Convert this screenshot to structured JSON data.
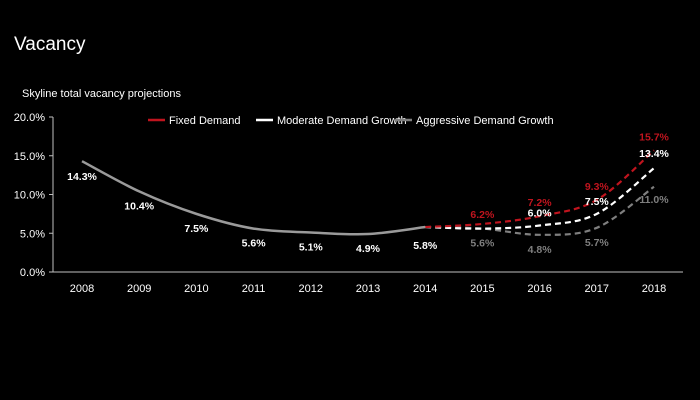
{
  "page": {
    "title": "Vacancy",
    "subtitle": "Skyline total vacancy projections"
  },
  "chart_data": {
    "type": "line",
    "title": "Skyline total vacancy projections",
    "xlabel": "",
    "ylabel": "",
    "ylim": [
      0,
      20
    ],
    "y_ticks": [
      "0.0%",
      "5.0%",
      "10.0%",
      "15.0%",
      "20.0%"
    ],
    "categories": [
      "2008",
      "2009",
      "2010",
      "2011",
      "2012",
      "2013",
      "2014",
      "2015",
      "2016",
      "2017",
      "2018"
    ],
    "legend_position": "top",
    "grid": false,
    "historical": {
      "values": [
        14.3,
        10.4,
        7.5,
        5.6,
        5.1,
        4.9,
        5.8
      ],
      "labels": [
        "14.3%",
        "10.4%",
        "7.5%",
        "5.6%",
        "5.1%",
        "4.9%",
        "5.8%"
      ],
      "color": "#9a9a9a"
    },
    "series": [
      {
        "name": "Fixed Demand",
        "color": "#c0141e",
        "values": [
          null,
          null,
          null,
          null,
          null,
          null,
          5.8,
          6.2,
          7.2,
          9.3,
          15.7
        ],
        "labels": [
          null,
          null,
          null,
          null,
          null,
          null,
          null,
          "6.2%",
          "7.2%",
          "9.3%",
          "15.7%"
        ]
      },
      {
        "name": "Moderate Demand Growth",
        "color": "#ffffff",
        "values": [
          null,
          null,
          null,
          null,
          null,
          null,
          5.8,
          5.6,
          6.0,
          7.5,
          13.4
        ],
        "labels": [
          null,
          null,
          null,
          null,
          null,
          null,
          null,
          null,
          "6.0%",
          "7.5%",
          "13.4%"
        ]
      },
      {
        "name": "Aggressive Demand Growth",
        "color": "#7f7f7f",
        "values": [
          null,
          null,
          null,
          null,
          null,
          null,
          5.8,
          5.6,
          4.8,
          5.7,
          11.0
        ],
        "labels": [
          null,
          null,
          null,
          null,
          null,
          null,
          null,
          "5.6%",
          "4.8%",
          "5.7%",
          "11.0%"
        ]
      }
    ]
  }
}
